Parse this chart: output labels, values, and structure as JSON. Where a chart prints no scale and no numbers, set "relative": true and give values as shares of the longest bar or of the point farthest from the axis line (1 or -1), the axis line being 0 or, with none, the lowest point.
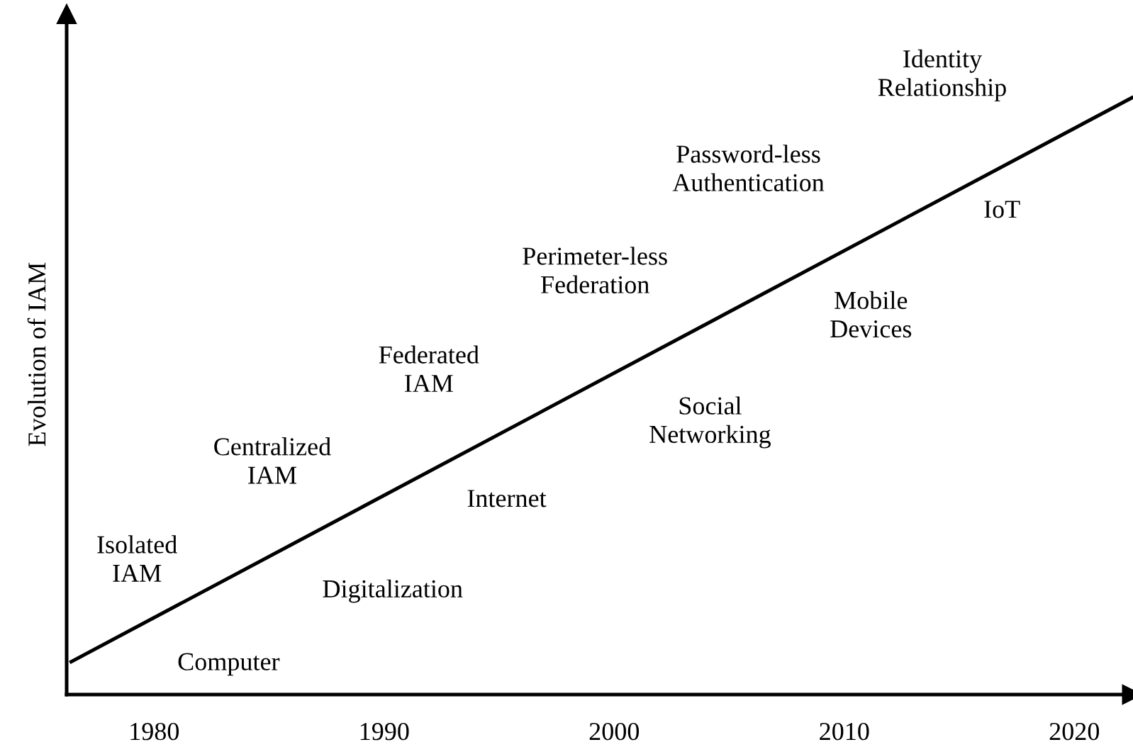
{
  "chart_data": {
    "type": "line",
    "ylabel": "Evolution of IAM",
    "relative": true,
    "xlim": [
      1976.2,
      2022.5
    ],
    "xticks": [
      1980,
      1990,
      2000,
      2010,
      2020
    ],
    "marker": "none",
    "line_style": "solid",
    "series": [
      {
        "x": [
          1976.4,
          2022.5
        ],
        "values": [
          0.055,
          1
        ],
        "color": "#000000"
      }
    ],
    "annotations": [
      "Isolated\nIAM",
      "Computer",
      "Centralized\nIAM",
      "Digitalization",
      "Federated\nIAM",
      "Internet",
      "Perimeter-less\nFederation",
      "Social\nNetworking",
      "Password-less\nAuthentication",
      "Mobile\nDevices",
      "IoT",
      "Identity\nRelationship"
    ]
  }
}
